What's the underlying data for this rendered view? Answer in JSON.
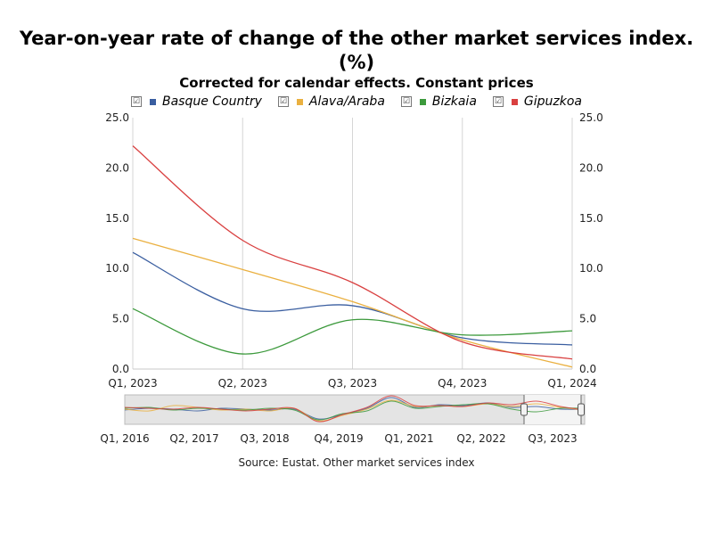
{
  "chart_data": {
    "type": "line",
    "title": "Year-on-year rate of change of the other market services index. (%)",
    "subtitle": "Corrected for calendar effects. Constant prices",
    "categories": [
      "Q1, 2023",
      "Q2, 2023",
      "Q3, 2023",
      "Q4, 2023",
      "Q1, 2024"
    ],
    "series": [
      {
        "name": "Basque Country",
        "color": "#3a5ea0",
        "values": [
          11.6,
          6.0,
          6.3,
          3.1,
          2.4
        ]
      },
      {
        "name": "Alava/Araba",
        "color": "#eab040",
        "values": [
          13.0,
          9.9,
          6.7,
          2.9,
          0.2
        ]
      },
      {
        "name": "Bizkaia",
        "color": "#3d9a3d",
        "values": [
          6.0,
          1.5,
          4.9,
          3.4,
          3.8
        ]
      },
      {
        "name": "Gipuzkoa",
        "color": "#d94040",
        "values": [
          22.2,
          12.8,
          8.6,
          2.7,
          1.0
        ]
      }
    ],
    "ylim": [
      0,
      25
    ],
    "yticks": [
      "0.0",
      "5.0",
      "10.0",
      "15.0",
      "20.0",
      "25.0"
    ],
    "navigator_labels": [
      "Q1, 2016",
      "Q2, 2017",
      "Q3, 2018",
      "Q4, 2019",
      "Q1, 2021",
      "Q2, 2022",
      "Q3, 2023"
    ],
    "legend_check": "☑",
    "source": "Source: Eustat. Other market services index"
  }
}
